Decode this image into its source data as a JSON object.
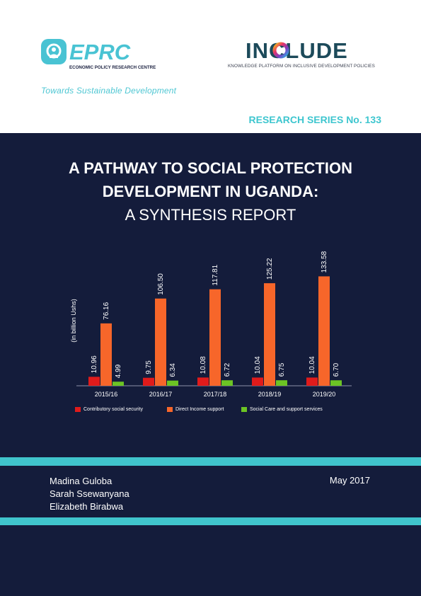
{
  "eprc": {
    "logo_text": "EPRC",
    "subtitle": "ECONOMIC POLICY RESEARCH CENTRE",
    "tagline": "Towards Sustainable Development"
  },
  "include": {
    "logo_text": "INCLUDE",
    "tagline": "KNOWLEDGE PLATFORM ON INCLUSIVE DEVELOPMENT POLICIES"
  },
  "series_label": "RESEARCH SERIES No. 133",
  "title": {
    "line1": "A PATHWAY TO SOCIAL PROTECTION",
    "line2": "DEVELOPMENT IN UGANDA:",
    "line3": "A SYNTHESIS REPORT"
  },
  "chart_data": {
    "type": "bar",
    "ylabel": "(in billion Ushs)",
    "categories": [
      "2015/16",
      "2016/17",
      "2017/18",
      "2018/19",
      "2019/20"
    ],
    "series": [
      {
        "name": "Contributory social security",
        "color": "#e01b1b",
        "values": [
          10.96,
          9.75,
          10.08,
          10.04,
          10.04
        ],
        "labels": [
          "10.96",
          "9.75",
          "10.08",
          "10.04",
          "10.04"
        ]
      },
      {
        "name": "Direct Income support",
        "color": "#f7662a",
        "values": [
          76.16,
          106.5,
          117.81,
          125.22,
          133.58
        ],
        "labels": [
          "76.16",
          "106.50",
          "117.81",
          "125.22",
          "133.58"
        ]
      },
      {
        "name": "Social Care and support services",
        "color": "#6cc424",
        "values": [
          4.99,
          6.34,
          6.72,
          6.75,
          6.7
        ],
        "labels": [
          "4.99",
          "6.34",
          "6.72",
          "6.75",
          "6.70"
        ]
      }
    ],
    "ylim": [
      0,
      140
    ],
    "grid": false,
    "legend_position": "bottom"
  },
  "authors": [
    "Madina Guloba",
    "Sarah Ssewanyana",
    "Elizabeth Birabwa"
  ],
  "date": "May 2017",
  "colors": {
    "navy": "#141c3b",
    "teal": "#40c4cc"
  }
}
